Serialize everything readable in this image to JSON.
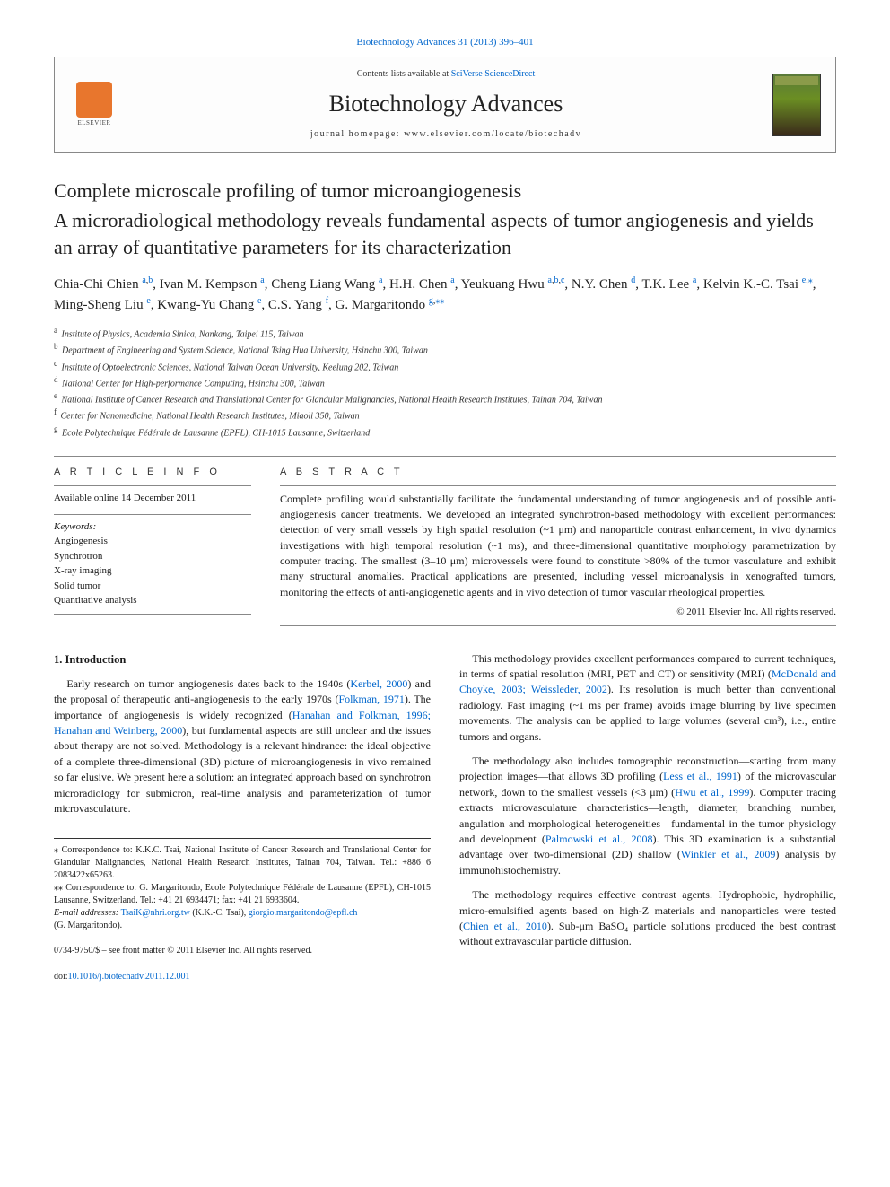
{
  "top_citation_link": "Biotechnology Advances 31 (2013) 396–401",
  "header": {
    "contents_prefix": "Contents lists available at ",
    "contents_link": "SciVerse ScienceDirect",
    "journal": "Biotechnology Advances",
    "homepage_prefix": "journal homepage: ",
    "homepage": "www.elsevier.com/locate/biotechadv",
    "publisher": "ELSEVIER"
  },
  "title": "Complete microscale profiling of tumor microangiogenesis",
  "subtitle": "A microradiological methodology reveals fundamental aspects of tumor angiogenesis and yields an array of quantitative parameters for its characterization",
  "authors_html_parts": [
    {
      "name": "Chia-Chi Chien ",
      "sup": "a,b"
    },
    {
      "name": ", Ivan M. Kempson ",
      "sup": "a"
    },
    {
      "name": ", Cheng Liang Wang ",
      "sup": "a"
    },
    {
      "name": ", H.H. Chen ",
      "sup": "a"
    },
    {
      "name": ", Yeukuang Hwu ",
      "sup": "a,b,c"
    },
    {
      "name": ", N.Y. Chen ",
      "sup": "d"
    },
    {
      "name": ", T.K. Lee ",
      "sup": "a"
    },
    {
      "name": ", Kelvin K.-C. Tsai ",
      "sup": "e,⁎"
    },
    {
      "name": ", Ming-Sheng Liu ",
      "sup": "e"
    },
    {
      "name": ", Kwang-Yu Chang ",
      "sup": "e"
    },
    {
      "name": ", C.S. Yang ",
      "sup": "f"
    },
    {
      "name": ", G. Margaritondo ",
      "sup": "g,⁎⁎"
    }
  ],
  "affiliations": [
    {
      "key": "a",
      "text": "Institute of Physics, Academia Sinica, Nankang, Taipei 115, Taiwan"
    },
    {
      "key": "b",
      "text": "Department of Engineering and System Science, National Tsing Hua University, Hsinchu 300, Taiwan"
    },
    {
      "key": "c",
      "text": "Institute of Optoelectronic Sciences, National Taiwan Ocean University, Keelung 202, Taiwan"
    },
    {
      "key": "d",
      "text": "National Center for High-performance Computing, Hsinchu 300, Taiwan"
    },
    {
      "key": "e",
      "text": "National Institute of Cancer Research and Translational Center for Glandular Malignancies, National Health Research Institutes, Tainan 704, Taiwan"
    },
    {
      "key": "f",
      "text": "Center for Nanomedicine, National Health Research Institutes, Miaoli 350, Taiwan"
    },
    {
      "key": "g",
      "text": "Ecole Polytechnique Fédérale de Lausanne (EPFL), CH-1015 Lausanne, Switzerland"
    }
  ],
  "article_info": {
    "header": "A R T I C L E   I N F O",
    "available": "Available online 14 December 2011",
    "keywords_label": "Keywords:",
    "keywords": [
      "Angiogenesis",
      "Synchrotron",
      "X-ray imaging",
      "Solid tumor",
      "Quantitative analysis"
    ]
  },
  "abstract": {
    "header": "A B S T R A C T",
    "body": "Complete profiling would substantially facilitate the fundamental understanding of tumor angiogenesis and of possible anti-angiogenesis cancer treatments. We developed an integrated synchrotron-based methodology with excellent performances: detection of very small vessels by high spatial resolution (~1 μm) and nanoparticle contrast enhancement, in vivo dynamics investigations with high temporal resolution (~1 ms), and three-dimensional quantitative morphology parametrization by computer tracing. The smallest (3–10 μm) microvessels were found to constitute >80% of the tumor vasculature and exhibit many structural anomalies. Practical applications are presented, including vessel microanalysis in xenografted tumors, monitoring the effects of anti-angiogenetic agents and in vivo detection of tumor vascular rheological properties.",
    "copyright": "© 2011 Elsevier Inc. All rights reserved."
  },
  "body": {
    "section1_heading": "1. Introduction",
    "col1": [
      {
        "text": "Early research on tumor angiogenesis dates back to the 1940s (",
        "link": "Kerbel, 2000",
        "tail": ") and the proposal of therapeutic anti-angiogenesis to the early 1970s (",
        "link2": "Folkman, 1971",
        "tail2": "). The importance of angiogenesis is widely recognized (",
        "link3": "Hanahan and Folkman, 1996; Hanahan and Weinberg, 2000",
        "tail3": "), but fundamental aspects are still unclear and the issues about therapy are not solved. Methodology is a relevant hindrance: the ideal objective of a complete three-dimensional (3D) picture of microangiogenesis in vivo remained so far elusive. We present here a solution: an integrated approach based on synchrotron microradiology for submicron, real-time analysis and parameterization of tumor microvasculature."
      }
    ],
    "col2": [
      {
        "pre": "This methodology provides excellent performances compared to current techniques, in terms of spatial resolution (MRI, PET and CT) or sensitivity (MRI) (",
        "link": "McDonald and Choyke, 2003; Weissleder, 2002",
        "post": "). Its resolution is much better than conventional radiology. Fast imaging (~1 ms per frame) avoids image blurring by live specimen movements. The analysis can be applied to large volumes (several cm³), i.e., entire tumors and organs."
      },
      {
        "pre": "The methodology also includes tomographic reconstruction—starting from many projection images—that allows 3D profiling (",
        "link": "Less et al., 1991",
        "mid": ") of the microvascular network, down to the smallest vessels (<3 μm) (",
        "link2": "Hwu et al., 1999",
        "mid2": "). Computer tracing extracts microvasculature characteristics—length, diameter, branching number, angulation and morphological heterogeneities—fundamental in the tumor physiology and development (",
        "link3": "Palmowski et al., 2008",
        "mid3": "). This 3D examination is a substantial advantage over two-dimensional (2D) shallow (",
        "link4": "Winkler et al., 2009",
        "post": ") analysis by immunohistochemistry."
      },
      {
        "pre": "The methodology requires effective contrast agents. Hydrophobic, hydrophilic, micro-emulsified agents based on high-Z materials and nanoparticles were tested (",
        "link": "Chien et al., 2010",
        "post": "). Sub-μm BaSO₄ particle solutions produced the best contrast without extravascular particle diffusion."
      }
    ]
  },
  "footnotes": {
    "corr1": "⁎ Correspondence to: K.K.C. Tsai, National Institute of Cancer Research and Translational Center for Glandular Malignancies, National Health Research Institutes, Tainan 704, Taiwan. Tel.: +886 6 2083422x65263.",
    "corr2": "⁎⁎ Correspondence to: G. Margaritondo, Ecole Polytechnique Fédérale de Lausanne (EPFL), CH-1015 Lausanne, Switzerland. Tel.: +41 21 6934471; fax: +41 21 6933604.",
    "emails_label": "E-mail addresses: ",
    "email1": "TsaiK@nhri.org.tw",
    "email1_who": " (K.K.-C. Tsai), ",
    "email2": "giorgio.margaritondo@epfl.ch",
    "email2_who": "(G. Margaritondo)."
  },
  "footer": {
    "issn": "0734-9750/$ – see front matter © 2011 Elsevier Inc. All rights reserved.",
    "doi_label": "doi:",
    "doi": "10.1016/j.biotechadv.2011.12.001"
  },
  "colors": {
    "link": "#0066cc",
    "elsevier_orange": "#e8762d",
    "text": "#1a1a1a",
    "rule": "#888888"
  }
}
